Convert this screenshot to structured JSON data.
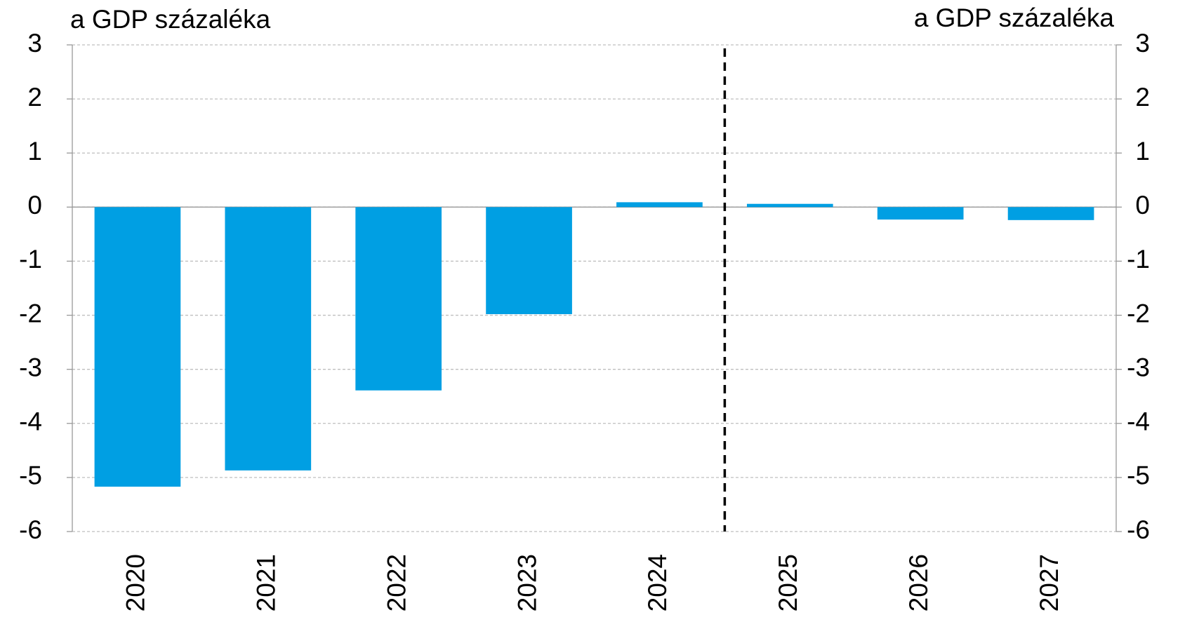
{
  "chart_data": {
    "type": "bar",
    "y_label": "a GDP százaléka",
    "y2_label": "a GDP százaléka",
    "categories": [
      "2020",
      "2021",
      "2022",
      "2023",
      "2024",
      "2025",
      "2026",
      "2027"
    ],
    "values": [
      -5.17,
      -4.87,
      -3.39,
      -1.98,
      0.09,
      0.06,
      -0.23,
      -0.24
    ],
    "color": "#009fe3",
    "ylim": [
      -6,
      3
    ],
    "yticks": [
      -6,
      -5,
      -4,
      -3,
      -2,
      -1,
      0,
      1,
      2,
      3
    ],
    "y2lim": [
      -6,
      3
    ],
    "y2ticks": [
      -6,
      -5,
      -4,
      -3,
      -2,
      -1,
      0,
      1,
      2,
      3
    ],
    "grid": true
  }
}
